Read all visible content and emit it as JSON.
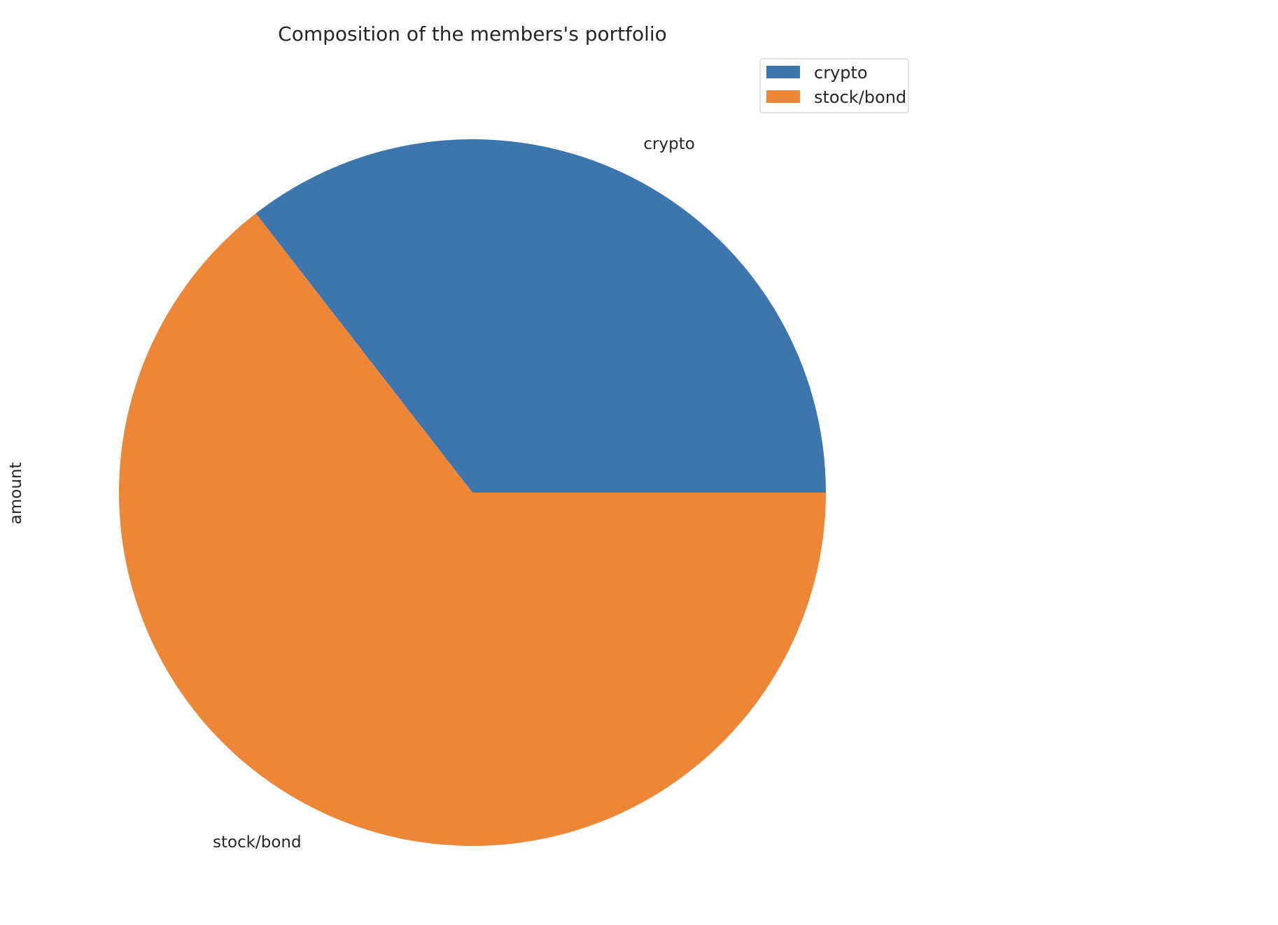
{
  "chart_data": {
    "type": "pie",
    "title": "Composition of the members's portfolio",
    "ylabel": "amount",
    "categories": [
      "crypto",
      "stock/bond"
    ],
    "values": [
      35.5,
      64.5
    ],
    "colors": [
      "#3d76ad",
      "#ed8637"
    ],
    "start_angle_deg": 0,
    "direction": "counterclockwise",
    "legend": {
      "placement": "upper-right",
      "entries": [
        "crypto",
        "stock/bond"
      ]
    }
  }
}
